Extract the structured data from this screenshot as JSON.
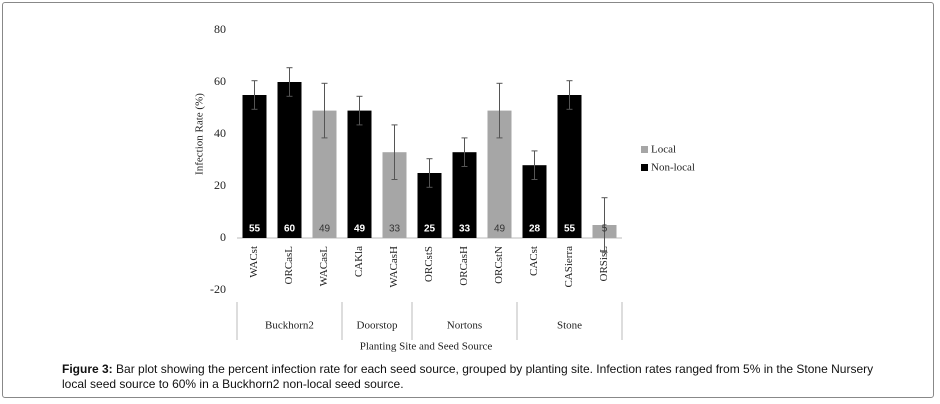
{
  "chart_data": {
    "type": "bar",
    "xlabel": "Planting Site and Seed Source",
    "ylabel": "Infection Rate (%)",
    "groups": [
      {
        "label": "Buckhorn2",
        "categories": [
          "WACst",
          "ORCasL",
          "WACasL"
        ]
      },
      {
        "label": "Doorstop",
        "categories": [
          "CAKla",
          "WACasH"
        ]
      },
      {
        "label": "Nortons",
        "categories": [
          "ORCstS",
          "ORCasH",
          "ORCstN"
        ]
      },
      {
        "label": "Stone",
        "categories": [
          "CACst",
          "CASierra",
          "ORSisL"
        ]
      }
    ],
    "series": [
      {
        "name": "Local",
        "color": "#a6a6a6",
        "values": [
          null,
          null,
          49,
          null,
          33,
          null,
          null,
          49,
          null,
          null,
          5
        ],
        "errors": [
          null,
          null,
          10.5,
          null,
          10.5,
          null,
          null,
          10.5,
          null,
          null,
          10.5
        ]
      },
      {
        "name": "Non-local",
        "color": "#000000",
        "values": [
          55,
          60,
          null,
          49,
          null,
          25,
          33,
          null,
          28,
          55,
          null
        ],
        "errors": [
          5.5,
          5.5,
          null,
          5.5,
          null,
          5.5,
          5.5,
          null,
          5.5,
          5.5,
          null
        ]
      }
    ],
    "ylim": [
      -20,
      80
    ],
    "yticks": [
      -20,
      0,
      20,
      40,
      60,
      80
    ]
  },
  "caption": {
    "label": "Figure 3:",
    "text": "Bar plot showing the percent infection rate for each seed source, grouped by planting site. Infection rates ranged from 5% in the Stone Nursery local seed source to 60% in a Buckhorn2 non-local seed source."
  }
}
